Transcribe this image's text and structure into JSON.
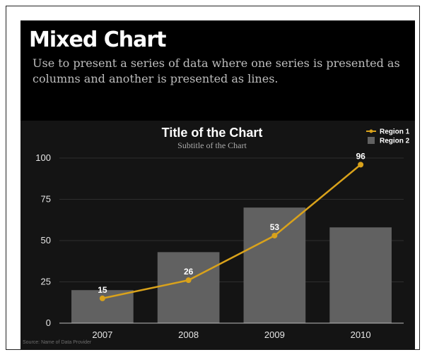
{
  "slide": {
    "title": "Mixed Chart",
    "description_lines": [
      "Use to present a series of data where one series is presented as",
      "columns and another is presented as lines."
    ]
  },
  "chart_data": {
    "type": "bar",
    "title": "Title of the Chart",
    "subtitle": "Subtitle of the Chart",
    "categories": [
      "2007",
      "2008",
      "2009",
      "2010"
    ],
    "ylim": [
      0,
      100
    ],
    "yticks": [
      0,
      25,
      50,
      75,
      100
    ],
    "grid": true,
    "legend_position": "top-right",
    "source": "Source: Name of Data Provider",
    "series": [
      {
        "name": "Region 1",
        "type": "line",
        "color": "#d9a21b",
        "values": [
          15,
          26,
          53,
          96
        ],
        "data_labels": [
          "15",
          "26",
          "53",
          "96"
        ]
      },
      {
        "name": "Region 2",
        "type": "bar",
        "color": "#616161",
        "values": [
          20,
          43,
          70,
          58
        ]
      }
    ]
  }
}
